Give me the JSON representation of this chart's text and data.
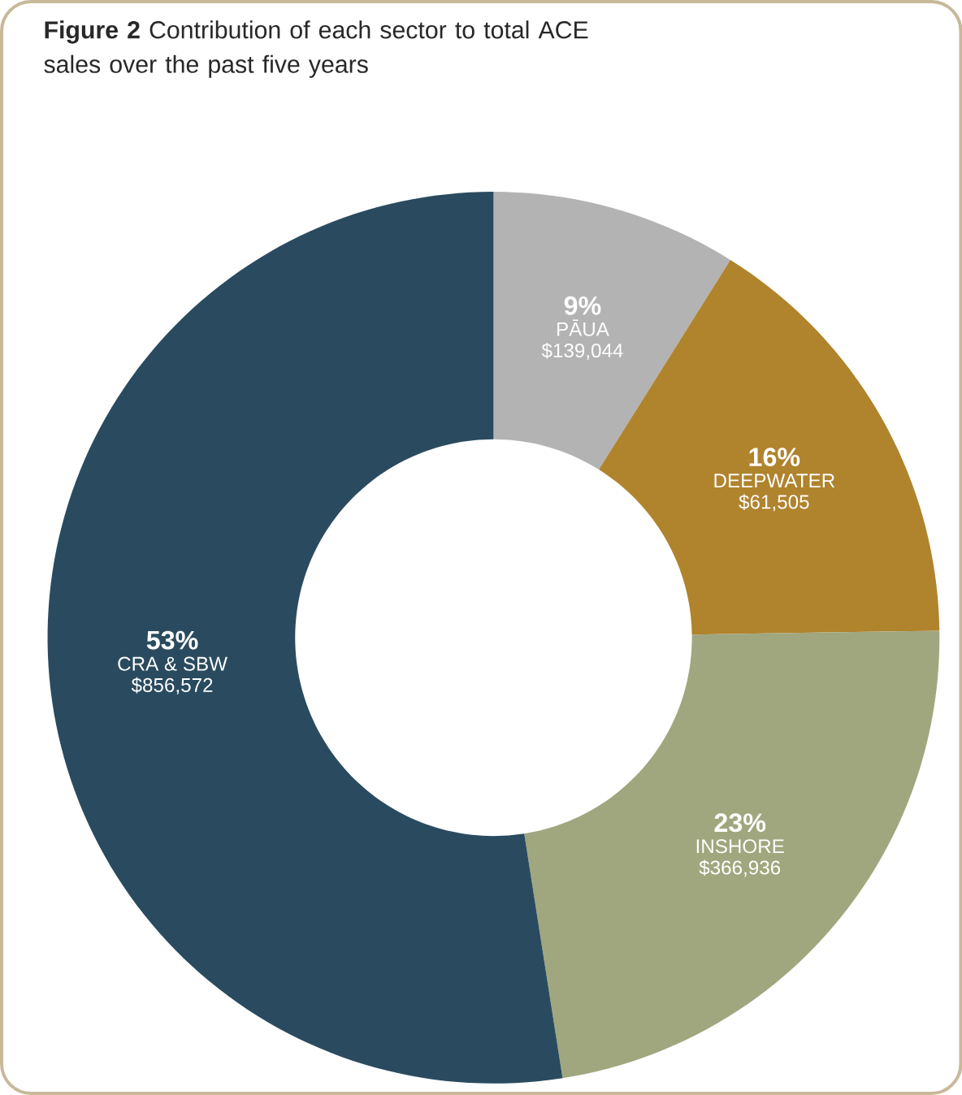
{
  "chart_data": {
    "type": "donut",
    "title": "**Figure 2** Contribution of each sector to total ACE sales over the past five years",
    "categories": [
      "PĀUA",
      "DEEPWATER",
      "INSHORE",
      "CRA & SBW"
    ],
    "values": [
      9,
      16,
      23,
      53
    ],
    "value_labels": [
      "9%",
      "16%",
      "23%",
      "53%"
    ],
    "colors": [
      "#b3b3b3",
      "#b0832d",
      "#a0a77e",
      "#2a4b5f"
    ],
    "annotations": [
      "$139,044",
      "$61,505",
      "$366,936",
      "$856,572"
    ]
  }
}
